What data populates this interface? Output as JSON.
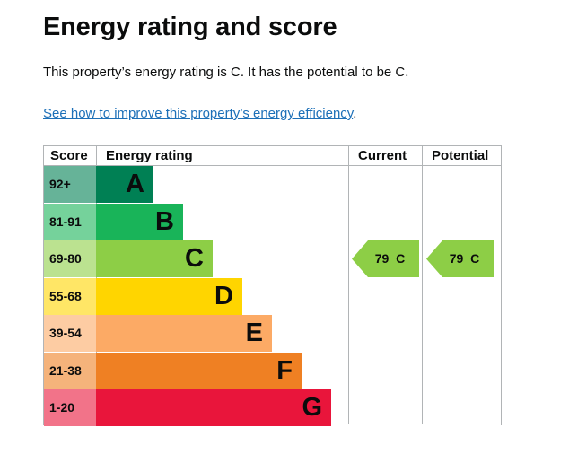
{
  "heading": "Energy rating and score",
  "summary": "This property’s energy rating is C. It has the potential to be C.",
  "improve_link": {
    "text": "See how to improve this property’s energy efficiency",
    "suffix": "."
  },
  "table": {
    "headers": {
      "score": "Score",
      "rating": "Energy rating",
      "current": "Current",
      "potential": "Potential"
    },
    "bands": [
      {
        "range": "92+",
        "letter": "A",
        "bar_color": "#008054",
        "score_color": "#66b398"
      },
      {
        "range": "81-91",
        "letter": "B",
        "bar_color": "#19b459",
        "score_color": "#75d29b"
      },
      {
        "range": "69-80",
        "letter": "C",
        "bar_color": "#8dce46",
        "score_color": "#bbe290"
      },
      {
        "range": "55-68",
        "letter": "D",
        "bar_color": "#ffd500",
        "score_color": "#ffe666"
      },
      {
        "range": "39-54",
        "letter": "E",
        "bar_color": "#fcaa65",
        "score_color": "#fdcca3"
      },
      {
        "range": "21-38",
        "letter": "F",
        "bar_color": "#ef8023",
        "score_color": "#f5b37b"
      },
      {
        "range": "1-20",
        "letter": "G",
        "bar_color": "#e9153b",
        "score_color": "#f27389"
      }
    ],
    "current": {
      "label": "79  C",
      "band": "C",
      "color": "#8dce46"
    },
    "potential": {
      "label": "79  C",
      "band": "C",
      "color": "#8dce46"
    }
  }
}
